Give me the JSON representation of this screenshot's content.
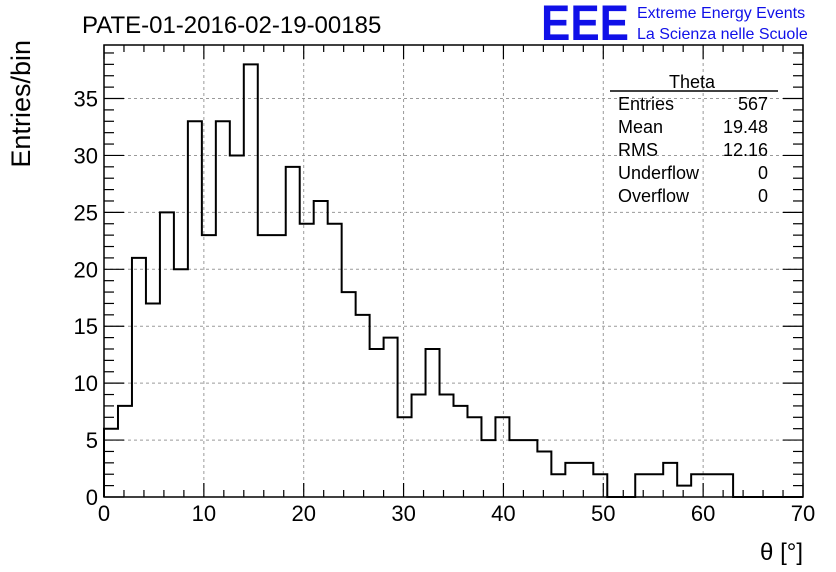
{
  "chart_data": {
    "type": "histogram",
    "title": "PATE-01-2016-02-19-00185",
    "xlabel": "θ [°]",
    "ylabel": "Entries/bin",
    "xlim": [
      0,
      70
    ],
    "ylim": [
      0,
      39.7
    ],
    "x_ticks": [
      "0",
      "10",
      "20",
      "30",
      "40",
      "50",
      "60",
      "70"
    ],
    "y_ticks": [
      "0",
      "5",
      "10",
      "15",
      "20",
      "25",
      "30",
      "35"
    ],
    "grid": true,
    "bin_width": 1.4,
    "bin_edges_start": 0,
    "values": [
      6,
      8,
      21,
      17,
      25,
      20,
      33,
      23,
      33,
      30,
      38,
      23,
      23,
      29,
      24,
      26,
      24,
      18,
      16,
      13,
      14,
      7,
      9,
      13,
      9,
      8,
      7,
      5,
      7,
      5,
      5,
      4,
      2,
      3,
      3,
      2,
      0,
      0,
      2,
      2,
      3,
      1,
      2,
      2,
      2,
      0,
      0,
      0,
      0,
      0
    ],
    "stats": {
      "name": "Theta",
      "rows": [
        {
          "label": "Entries",
          "value": "567"
        },
        {
          "label": "Mean",
          "value": "19.48"
        },
        {
          "label": "RMS",
          "value": "12.16"
        },
        {
          "label": "Underflow",
          "value": "0"
        },
        {
          "label": "Overflow",
          "value": "0"
        }
      ]
    }
  },
  "logo": {
    "mark": "EEE",
    "line1": "Extreme Energy Events",
    "line2": "La Scienza nelle Scuole",
    "color": "#1010e8"
  }
}
